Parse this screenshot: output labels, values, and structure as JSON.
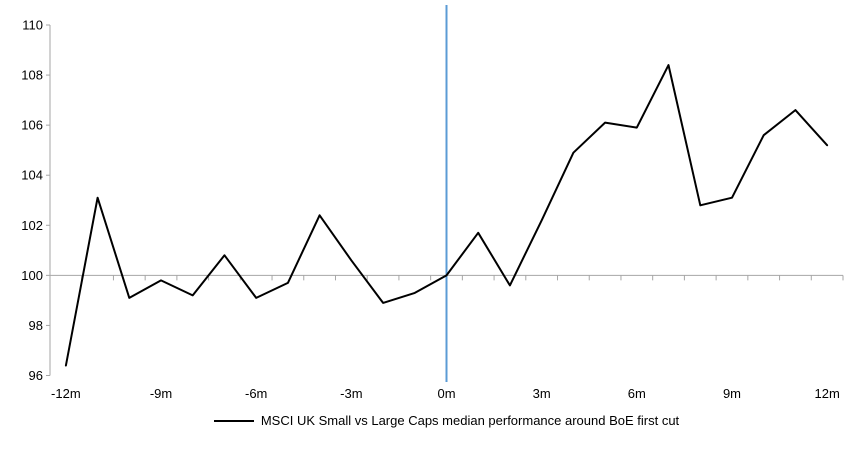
{
  "page": {
    "background": "#FFFFFF"
  },
  "chart_data": {
    "type": "line",
    "title": "",
    "x_unit": "months around first cut",
    "x": [
      -12,
      -11,
      -10,
      -9,
      -8,
      -7,
      -6,
      -5,
      -4,
      -3,
      -2,
      -1,
      0,
      1,
      2,
      3,
      4,
      5,
      6,
      7,
      8,
      9,
      10,
      11,
      12
    ],
    "series": [
      {
        "name": "MSCI UK Small vs Large Caps median performance around BoE first cut",
        "color": "#000000",
        "values": [
          96.4,
          103.1,
          99.1,
          99.8,
          99.2,
          100.8,
          99.1,
          99.7,
          102.4,
          100.6,
          98.9,
          99.3,
          100.0,
          101.7,
          99.6,
          102.2,
          104.9,
          106.1,
          105.9,
          108.4,
          102.8,
          103.1,
          105.6,
          106.6,
          105.2
        ]
      }
    ],
    "xlim": [
      -12.5,
      12.5
    ],
    "ylim": [
      96,
      110
    ],
    "ytick_values": [
      110,
      108,
      106,
      104,
      102,
      100,
      98,
      96
    ],
    "xtick_label_positions": [
      -12,
      -9,
      -6,
      -3,
      0,
      3,
      6,
      9,
      12
    ],
    "xtick_labels": [
      "-12m",
      "-9m",
      "-6m",
      "-3m",
      "0m",
      "3m",
      "6m",
      "9m",
      "12m"
    ],
    "minor_xtick_step": 1,
    "baseline_value": 100,
    "event_line": {
      "x": 0,
      "color": "#5B9BD5"
    },
    "axis_color": "#A6A6A6",
    "grid": "off",
    "legend_position": "bottom-center",
    "line_width": 2
  }
}
